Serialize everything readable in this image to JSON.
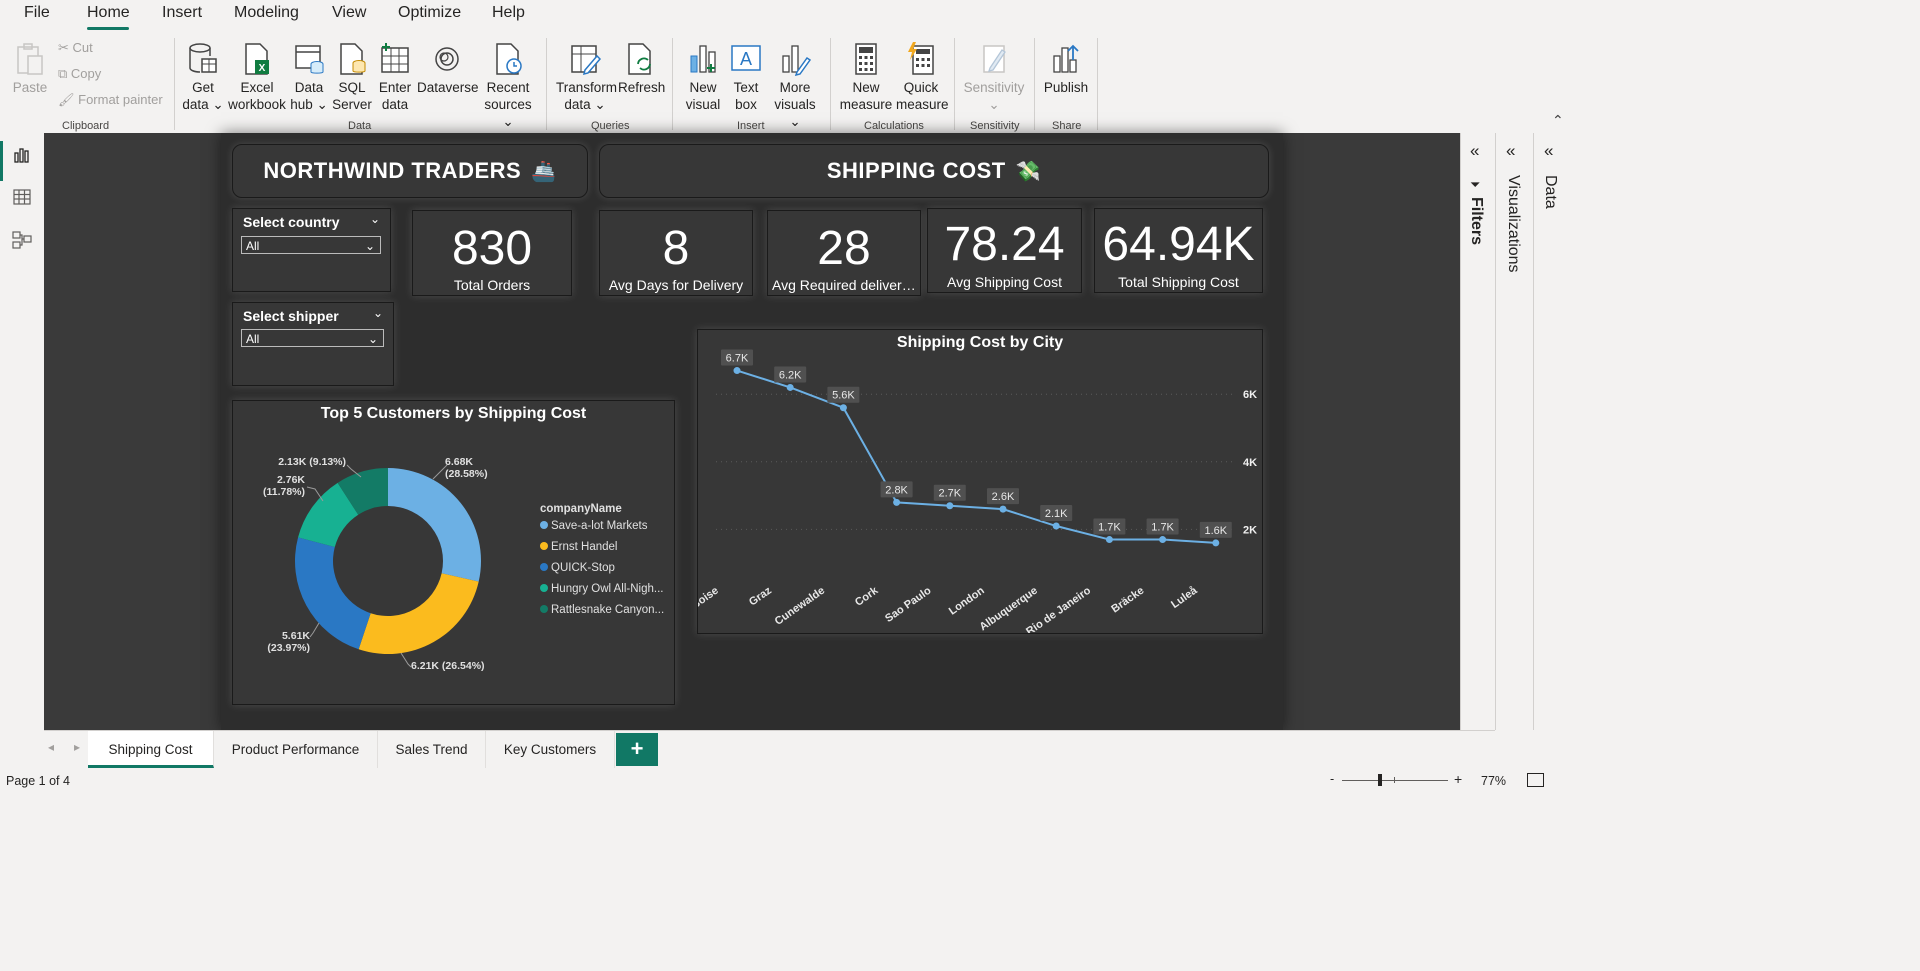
{
  "menu": {
    "items": [
      "File",
      "Home",
      "Insert",
      "Modeling",
      "View",
      "Optimize",
      "Help"
    ],
    "active": "Home"
  },
  "ribbon": {
    "clipboard": {
      "paste": "Paste",
      "cut": "Cut",
      "copy": "Copy",
      "format_painter": "Format painter",
      "group": "Clipboard"
    },
    "data": {
      "get_data": "Get data",
      "excel": "Excel workbook",
      "data_hub": "Data hub",
      "sql": "SQL Server",
      "enter_data": "Enter data",
      "dataverse": "Dataverse",
      "recent": "Recent sources",
      "group": "Data"
    },
    "queries": {
      "transform": "Transform data",
      "refresh": "Refresh",
      "group": "Queries"
    },
    "insert": {
      "new_visual": "New visual",
      "text_box": "Text box",
      "more_visuals": "More visuals",
      "group": "Insert"
    },
    "calculations": {
      "new_measure": "New measure",
      "quick_measure": "Quick measure",
      "group": "Calculations"
    },
    "sensitivity": {
      "label": "Sensitivity",
      "group": "Sensitivity"
    },
    "share": {
      "publish": "Publish",
      "group": "Share"
    }
  },
  "report": {
    "title_left": "NORTHWIND TRADERS",
    "title_right": "SHIPPING COST",
    "slicers": [
      {
        "title": "Select country",
        "value": "All"
      },
      {
        "title": "Select shipper",
        "value": "All"
      }
    ],
    "kpis": [
      {
        "value": "830",
        "label": "Total Orders"
      },
      {
        "value": "8",
        "label": "Avg Days for Delivery"
      },
      {
        "value": "28",
        "label": "Avg Required delivery..."
      },
      {
        "value": "78.24",
        "label": "Avg Shipping Cost"
      },
      {
        "value": "64.94K",
        "label": "Total Shipping Cost"
      }
    ]
  },
  "chart_data": [
    {
      "type": "pie",
      "title": "Top 5 Customers by Shipping Cost",
      "legend_title": "companyName",
      "legend_position": "right",
      "categories": [
        "Save-a-lot Markets",
        "Ernst Handel",
        "QUICK-Stop",
        "Hungry Owl All-Nigh...",
        "Rattlesnake Canyon..."
      ],
      "values": [
        6.68,
        6.21,
        5.61,
        2.76,
        2.13
      ],
      "data_labels": [
        "6.68K (28.58%)",
        "6.21K (26.54%)",
        "5.61K (23.97%)",
        "2.76K (11.78%)",
        "2.13K (9.13%)"
      ],
      "label_parts": [
        [
          "6.68K",
          "(28.58%)"
        ],
        [
          "6.21K (26.54%)"
        ],
        [
          "5.61K",
          "(23.97%)"
        ],
        [
          "2.76K",
          "(11.78%)"
        ],
        [
          "2.13K (9.13%)"
        ]
      ],
      "colors": [
        "#6cb0e4",
        "#fbbb1e",
        "#2a78c4",
        "#17b192",
        "#137b66"
      ]
    },
    {
      "type": "line",
      "title": "Shipping Cost by City",
      "categories": [
        "Boise",
        "Graz",
        "Cunewalde",
        "Cork",
        "Sao Paulo",
        "London",
        "Albuquerque",
        "Rio de Janeiro",
        "Bräcke",
        "Luleå"
      ],
      "values": [
        6.7,
        6.2,
        5.6,
        2.8,
        2.7,
        2.6,
        2.1,
        1.7,
        1.7,
        1.6
      ],
      "data_labels": [
        "6.7K",
        "6.2K",
        "5.6K",
        "2.8K",
        "2.7K",
        "2.6K",
        "2.1K",
        "1.7K",
        "1.7K",
        "1.6K"
      ],
      "y_ticks": [
        2,
        4,
        6
      ],
      "y_tick_labels": [
        "2K",
        "4K",
        "6K"
      ],
      "ylim": [
        0,
        7
      ],
      "y_axis_position": "right",
      "gridlines": true,
      "color": "#6cb0e4"
    }
  ],
  "panes": {
    "filters": "Filters",
    "visualizations": "Visualizations",
    "data": "Data"
  },
  "tabs": [
    "Shipping Cost",
    "Product Performance",
    "Sales Trend",
    "Key Customers"
  ],
  "active_tab": "Shipping Cost",
  "add_tab": "+",
  "status": {
    "page": "Page 1 of 4",
    "zoom": "77%",
    "zoom_minus": "-",
    "zoom_plus": "+"
  },
  "colors": {
    "accent": "#117865",
    "canvas": "#2d2d2d",
    "card": "#373737"
  }
}
